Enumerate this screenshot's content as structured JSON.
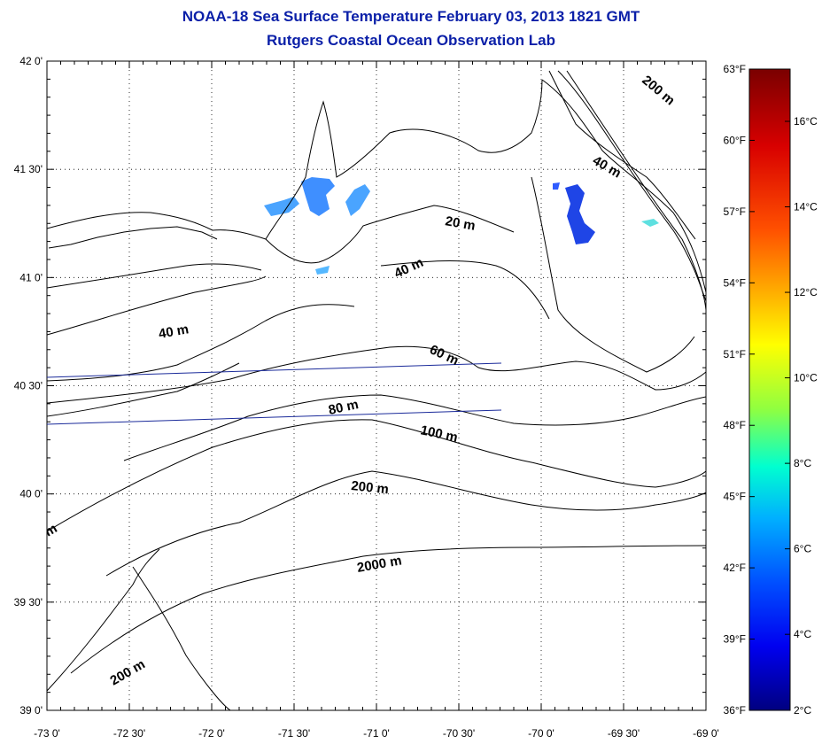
{
  "title": {
    "line1": "NOAA-18 Sea Surface Temperature February 03, 2013 1821 GMT",
    "line2": "Rutgers Coastal Ocean Observation Lab"
  },
  "map": {
    "lat_labels": [
      "42 0'",
      "41 30'",
      "41 0'",
      "40 30'",
      "40 0'",
      "39 30'",
      "39 0'"
    ],
    "lon_labels": [
      "-73 0'",
      "-72 30'",
      "-72 0'",
      "-71 30'",
      "-71 0'",
      "-70 30'",
      "-70 0'",
      "-69 30'",
      "-69 0'"
    ],
    "contour_labels": [
      "200 m",
      "40 m",
      "20 m",
      "40 m",
      "40 m",
      "60 m",
      "80 m",
      "100 m",
      "200 m",
      "2000 m",
      "200 m",
      "m"
    ]
  },
  "colorbar": {
    "fahrenheit_labels": [
      "63°F",
      "60°F",
      "57°F",
      "54°F",
      "51°F",
      "48°F",
      "45°F",
      "42°F",
      "39°F",
      "36°F"
    ],
    "celsius_labels": [
      "16°C",
      "14°C",
      "12°C",
      "10°C",
      "8°C",
      "6°C",
      "4°C",
      "2°C"
    ],
    "colors": [
      "#8b0000",
      "#ff0000",
      "#ff8c00",
      "#ffff00",
      "#7fff00",
      "#00ffff",
      "#0080ff",
      "#0000ff",
      "#00008b"
    ]
  }
}
